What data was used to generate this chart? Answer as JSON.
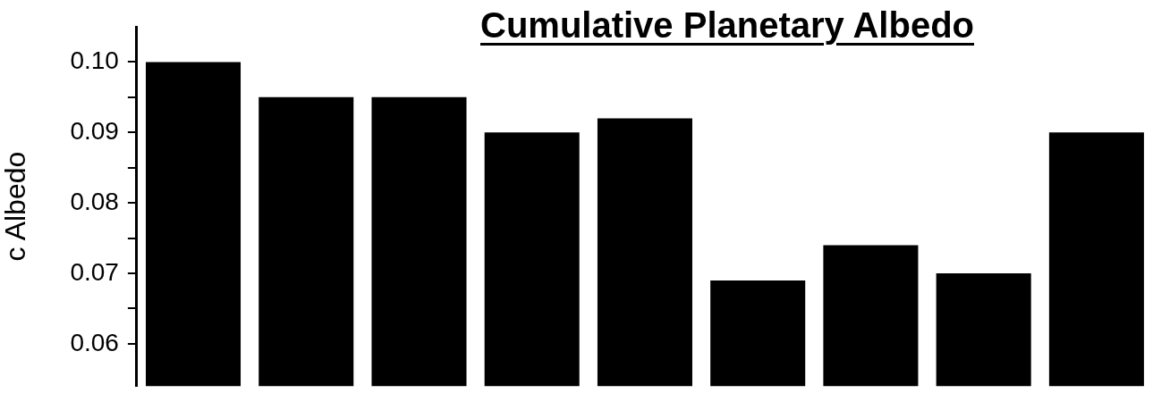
{
  "chart_data": {
    "type": "bar",
    "title": "Cumulative Planetary Albedo",
    "ylabel": "c Albedo",
    "categories": [
      null,
      null,
      null,
      null,
      null,
      null,
      null,
      null,
      null
    ],
    "values": [
      0.1,
      0.095,
      0.095,
      0.09,
      0.092,
      0.069,
      0.074,
      0.07,
      0.09
    ],
    "color": "#000000",
    "ylim": [
      0.054,
      0.105
    ],
    "yticks": [
      0.06,
      {
        "value": 0.065,
        "label": null
      },
      0.07,
      {
        "value": 0.075,
        "label": null
      },
      0.08,
      {
        "value": 0.085,
        "label": null
      },
      0.09,
      {
        "value": 0.095,
        "label": null
      },
      "0.10"
    ],
    "grid": false,
    "legend": false,
    "tick_labels": "y"
  }
}
